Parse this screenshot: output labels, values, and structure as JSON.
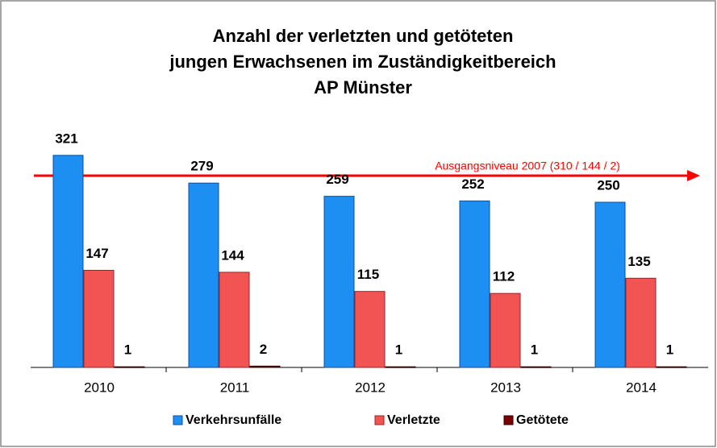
{
  "chart_data": {
    "type": "bar",
    "title_lines": [
      "Anzahl der verletzten und getöteten",
      "jungen Erwachsenen im Zuständigkeitbereich",
      "AP Münster"
    ],
    "annotation": "Ausgangsniveau 2007 (310 / 144 / 2)",
    "categories": [
      "2010",
      "2011",
      "2012",
      "2013",
      "2014"
    ],
    "series": [
      {
        "name": "Verkehrsunfälle",
        "color": "#1e8ff2",
        "values": [
          321,
          279,
          259,
          252,
          250
        ]
      },
      {
        "name": "Verletzte",
        "color": "#f25454",
        "values": [
          147,
          144,
          115,
          112,
          135
        ]
      },
      {
        "name": "Getötete",
        "color": "#7a0000",
        "values": [
          1,
          2,
          1,
          1,
          1
        ]
      }
    ],
    "ylim": [
      0,
      350
    ]
  }
}
